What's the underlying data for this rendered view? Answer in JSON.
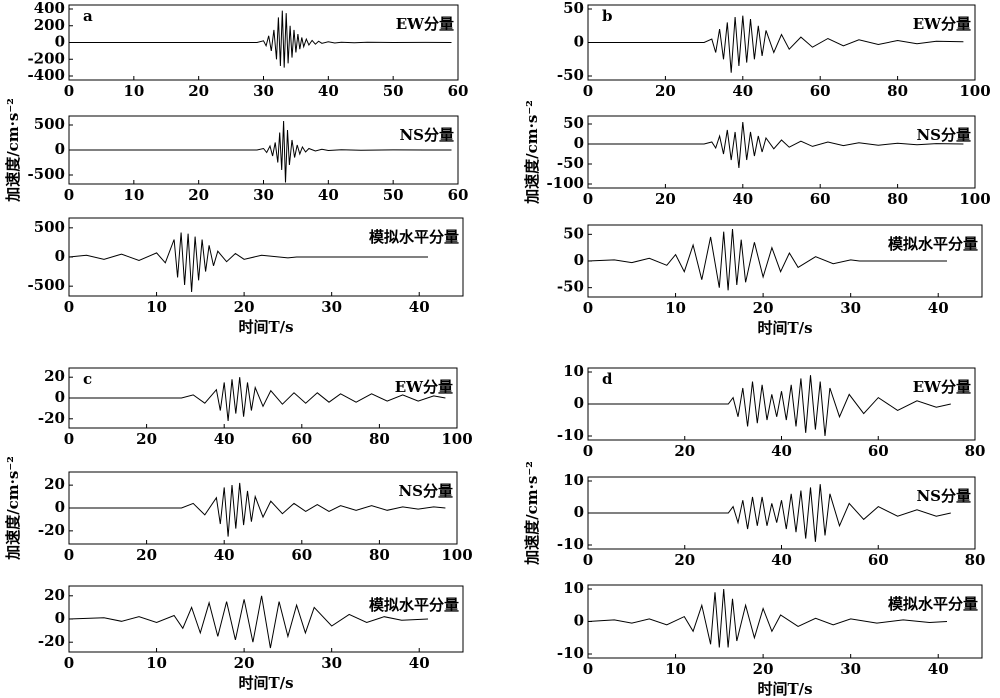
{
  "chart_data": [
    {
      "type": "line",
      "label": "a",
      "annotation": "EW分量",
      "xlim": [
        0,
        60
      ],
      "xticks": [
        0,
        10,
        20,
        30,
        40,
        50,
        60
      ],
      "ylim": [
        -400,
        400
      ],
      "yticks": [
        400,
        200,
        0,
        -200,
        -400
      ],
      "x": [
        0,
        29,
        30,
        30.4,
        30.8,
        31.2,
        31.6,
        32,
        32.3,
        32.6,
        32.9,
        33.2,
        33.5,
        33.8,
        34.1,
        34.4,
        34.7,
        35,
        35.3,
        35.6,
        35.9,
        36.2,
        36.6,
        37,
        37.5,
        38,
        38.5,
        39,
        40,
        41,
        42,
        44,
        46,
        50,
        55,
        59
      ],
      "series": [
        {
          "color": "#000000",
          "values": [
            0,
            0,
            20,
            -40,
            80,
            -100,
            150,
            -200,
            300,
            -280,
            380,
            -300,
            350,
            -250,
            200,
            -180,
            150,
            -120,
            100,
            -80,
            60,
            -50,
            40,
            -30,
            25,
            -20,
            15,
            -10,
            8,
            -6,
            4,
            -3,
            2,
            0,
            1,
            0
          ]
        }
      ]
    },
    {
      "type": "line",
      "annotation": "NS分量",
      "ylabel": "加速度/cm·s⁻²",
      "xlim": [
        0,
        60
      ],
      "xticks": [
        0,
        10,
        20,
        30,
        40,
        50,
        60
      ],
      "ylim": [
        -600,
        600
      ],
      "yticks": [
        500,
        0,
        -500
      ],
      "x": [
        0,
        29,
        30,
        30.5,
        31,
        31.4,
        31.8,
        32.2,
        32.5,
        32.8,
        33.1,
        33.4,
        33.7,
        34,
        34.4,
        34.8,
        35.2,
        35.6,
        36,
        36.5,
        37,
        38,
        39,
        40,
        42,
        45,
        50,
        55,
        59
      ],
      "series": [
        {
          "color": "#000000",
          "values": [
            0,
            0,
            30,
            -50,
            80,
            -120,
            150,
            -250,
            350,
            -400,
            580,
            -650,
            400,
            -300,
            200,
            -150,
            100,
            -80,
            60,
            -40,
            30,
            -20,
            15,
            -10,
            5,
            -3,
            2,
            0,
            0
          ]
        }
      ]
    },
    {
      "type": "line",
      "annotation": "模拟水平分量",
      "xlabel": "时间T/s",
      "xlim": [
        0,
        45
      ],
      "xticks": [
        0,
        10,
        20,
        30,
        40
      ],
      "ylim": [
        -600,
        600
      ],
      "yticks": [
        500,
        0,
        -500
      ],
      "x": [
        0,
        2,
        4,
        6,
        8,
        10,
        11,
        12,
        12.4,
        12.8,
        13.2,
        13.6,
        14,
        14.4,
        14.8,
        15.2,
        15.6,
        16,
        16.5,
        17,
        18,
        19,
        20,
        22,
        25,
        26,
        41
      ],
      "series": [
        {
          "color": "#000000",
          "values": [
            0,
            30,
            -40,
            50,
            -60,
            70,
            -100,
            300,
            -350,
            420,
            -480,
            400,
            -600,
            350,
            -400,
            300,
            -250,
            200,
            -150,
            100,
            -80,
            60,
            -40,
            30,
            -15,
            0,
            0
          ]
        }
      ]
    },
    {
      "type": "line",
      "label": "b",
      "annotation": "EW分量",
      "xlim": [
        0,
        100
      ],
      "xticks": [
        0,
        20,
        40,
        60,
        80,
        100
      ],
      "ylim": [
        -50,
        50
      ],
      "yticks": [
        50,
        0,
        -50
      ],
      "x": [
        0,
        30,
        32,
        33,
        34,
        35,
        36,
        37,
        38,
        39,
        40,
        41,
        42,
        43,
        44,
        45,
        46,
        48,
        50,
        52,
        55,
        58,
        62,
        66,
        70,
        75,
        80,
        85,
        90,
        97
      ],
      "series": [
        {
          "color": "#000000",
          "values": [
            0,
            0,
            5,
            -15,
            20,
            -25,
            30,
            -45,
            38,
            -35,
            40,
            -30,
            35,
            -25,
            25,
            -20,
            18,
            -15,
            12,
            -10,
            8,
            -7,
            6,
            -5,
            4,
            -3,
            3,
            -2,
            2,
            1
          ]
        }
      ]
    },
    {
      "type": "line",
      "annotation": "NS分量",
      "ylabel": "加速度/cm·s⁻²",
      "xlim": [
        0,
        100
      ],
      "xticks": [
        0,
        20,
        40,
        60,
        80,
        100
      ],
      "ylim": [
        -100,
        60
      ],
      "yticks": [
        50,
        0,
        -50,
        -100
      ],
      "x": [
        0,
        30,
        32,
        33,
        34,
        35,
        36,
        37,
        38,
        39,
        40,
        41,
        42,
        43,
        44,
        45,
        46,
        48,
        50,
        52,
        55,
        58,
        62,
        66,
        70,
        75,
        80,
        85,
        90,
        97
      ],
      "series": [
        {
          "color": "#000000",
          "values": [
            0,
            0,
            5,
            -10,
            20,
            -25,
            35,
            -40,
            30,
            -60,
            55,
            -40,
            30,
            -30,
            20,
            -20,
            15,
            -12,
            10,
            -8,
            7,
            -6,
            5,
            -4,
            3,
            -3,
            2,
            -2,
            1,
            0
          ]
        }
      ]
    },
    {
      "type": "line",
      "annotation": "模拟水平分量",
      "xlabel": "时间T/s",
      "xlim": [
        0,
        45
      ],
      "xticks": [
        0,
        10,
        20,
        30,
        40
      ],
      "ylim": [
        -60,
        60
      ],
      "yticks": [
        50,
        0,
        -50
      ],
      "x": [
        0,
        3,
        5,
        7,
        9,
        10,
        11,
        12,
        13,
        14,
        15,
        15.5,
        16,
        16.5,
        17,
        17.5,
        18,
        19,
        20,
        21,
        22,
        23,
        24,
        26,
        28,
        30,
        31,
        41
      ],
      "series": [
        {
          "color": "#000000",
          "values": [
            0,
            2,
            -3,
            5,
            -8,
            12,
            -20,
            30,
            -35,
            45,
            -50,
            55,
            -55,
            60,
            -45,
            40,
            -40,
            35,
            -30,
            25,
            -20,
            15,
            -12,
            8,
            -5,
            2,
            0,
            0
          ]
        }
      ]
    },
    {
      "type": "line",
      "label": "c",
      "annotation": "EW分量",
      "xlim": [
        0,
        100
      ],
      "xticks": [
        0,
        20,
        40,
        60,
        80,
        100
      ],
      "ylim": [
        -25,
        25
      ],
      "yticks": [
        20,
        0,
        -20
      ],
      "x": [
        0,
        29,
        32,
        35,
        38,
        39,
        40,
        41,
        42,
        43,
        44,
        45,
        46,
        47,
        48,
        50,
        52,
        55,
        58,
        61,
        64,
        67,
        70,
        74,
        78,
        82,
        86,
        90,
        94,
        97
      ],
      "series": [
        {
          "color": "#000000",
          "values": [
            0,
            0,
            3,
            -5,
            8,
            -12,
            15,
            -22,
            18,
            -15,
            20,
            -18,
            15,
            -12,
            10,
            -8,
            7,
            -6,
            5,
            -5,
            5,
            -4,
            4,
            -4,
            4,
            -3,
            3,
            -3,
            2,
            0
          ]
        }
      ]
    },
    {
      "type": "line",
      "annotation": "NS分量",
      "ylabel": "加速度/cm·s⁻²",
      "xlim": [
        0,
        100
      ],
      "xticks": [
        0,
        20,
        40,
        60,
        80,
        100
      ],
      "ylim": [
        -28,
        28
      ],
      "yticks": [
        20,
        0,
        -20
      ],
      "x": [
        0,
        29,
        32,
        35,
        38,
        39,
        40,
        41,
        42,
        43,
        44,
        45,
        46,
        47,
        48,
        50,
        52,
        55,
        58,
        61,
        64,
        67,
        70,
        74,
        78,
        82,
        86,
        90,
        94,
        97
      ],
      "series": [
        {
          "color": "#000000",
          "values": [
            0,
            0,
            4,
            -6,
            9,
            -14,
            18,
            -25,
            20,
            -18,
            22,
            -15,
            15,
            -12,
            10,
            -8,
            6,
            -5,
            4,
            -3,
            3,
            -3,
            2,
            -2,
            2,
            -2,
            1,
            -1,
            1,
            0
          ]
        }
      ]
    },
    {
      "type": "line",
      "annotation": "模拟水平分量",
      "xlabel": "时间T/s",
      "xlim": [
        0,
        45
      ],
      "xticks": [
        0,
        10,
        20,
        30,
        40
      ],
      "ylim": [
        -25,
        25
      ],
      "yticks": [
        20,
        0,
        -20
      ],
      "x": [
        0,
        4,
        6,
        8,
        10,
        12,
        13,
        14,
        15,
        16,
        17,
        18,
        19,
        20,
        21,
        22,
        23,
        24,
        25,
        26,
        27,
        28,
        30,
        32,
        34,
        36,
        38,
        41
      ],
      "series": [
        {
          "color": "#000000",
          "values": [
            0,
            1,
            -2,
            2,
            -3,
            3,
            -8,
            10,
            -12,
            14,
            -15,
            15,
            -18,
            17,
            -20,
            20,
            -25,
            15,
            -15,
            12,
            -12,
            10,
            -6,
            4,
            -3,
            2,
            -1,
            0
          ]
        }
      ]
    },
    {
      "type": "line",
      "label": "d",
      "annotation": "EW分量",
      "xlim": [
        0,
        80
      ],
      "xticks": [
        0,
        20,
        40,
        60,
        80
      ],
      "ylim": [
        -10,
        10
      ],
      "yticks": [
        10,
        0,
        -10
      ],
      "x": [
        0,
        29,
        30,
        31,
        32,
        33,
        34,
        35,
        36,
        37,
        38,
        39,
        40,
        41,
        42,
        43,
        44,
        45,
        46,
        47,
        48,
        49,
        50,
        52,
        54,
        57,
        60,
        64,
        68,
        72,
        75
      ],
      "series": [
        {
          "color": "#000000",
          "values": [
            0,
            0,
            2,
            -4,
            5,
            -7,
            7,
            -6,
            6,
            -5,
            3,
            -4,
            4,
            -5,
            6,
            -7,
            8,
            -9,
            9,
            -8,
            7,
            -10,
            5,
            -4,
            3,
            -3,
            2,
            -2,
            1,
            -1,
            0
          ]
        }
      ]
    },
    {
      "type": "line",
      "annotation": "NS分量",
      "ylabel": "加速度/cm·s⁻²",
      "xlim": [
        0,
        80
      ],
      "xticks": [
        0,
        20,
        40,
        60,
        80
      ],
      "ylim": [
        -10,
        10
      ],
      "yticks": [
        10,
        0,
        -10
      ],
      "x": [
        0,
        29,
        30,
        31,
        32,
        33,
        34,
        35,
        36,
        37,
        38,
        39,
        40,
        41,
        42,
        43,
        44,
        45,
        46,
        47,
        48,
        49,
        50,
        52,
        54,
        57,
        60,
        64,
        68,
        72,
        75
      ],
      "series": [
        {
          "color": "#000000",
          "values": [
            0,
            0,
            2,
            -3,
            4,
            -5,
            5,
            -4,
            5,
            -4,
            3,
            -3,
            4,
            -5,
            6,
            -6,
            7,
            -8,
            8,
            -9,
            9,
            -7,
            6,
            -4,
            3,
            -2,
            2,
            -1,
            1,
            -1,
            0
          ]
        }
      ]
    },
    {
      "type": "line",
      "annotation": "模拟水平分量",
      "xlabel": "时间T/s",
      "xlim": [
        0,
        45
      ],
      "xticks": [
        0,
        10,
        20,
        30,
        40
      ],
      "ylim": [
        -10,
        10
      ],
      "yticks": [
        10,
        0,
        -10
      ],
      "x": [
        0,
        3,
        5,
        7,
        9,
        11,
        12,
        13,
        14,
        14.5,
        15,
        15.5,
        16,
        16.5,
        17,
        18,
        19,
        20,
        21,
        22,
        24,
        26,
        28,
        30,
        33,
        36,
        39,
        41
      ],
      "series": [
        {
          "color": "#000000",
          "values": [
            0,
            0.5,
            -0.5,
            0.8,
            -1,
            1.5,
            -3,
            5,
            -7,
            9,
            -8,
            10,
            -8,
            7,
            -6,
            5,
            -5,
            4,
            -3,
            2,
            -1.5,
            1,
            -1,
            0.8,
            -0.5,
            0.5,
            -0.3,
            0
          ]
        }
      ]
    }
  ]
}
